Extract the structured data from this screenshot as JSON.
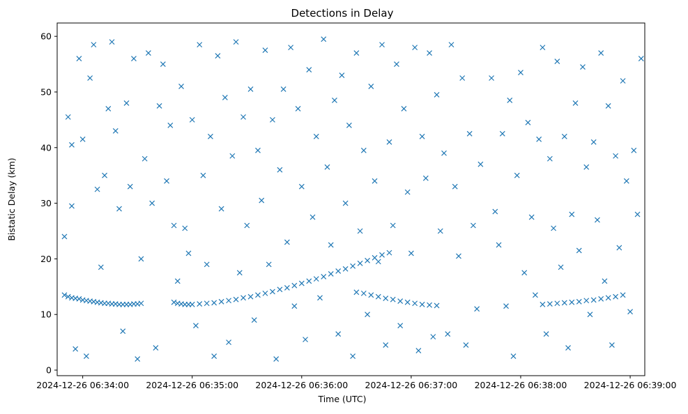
{
  "chart_data": {
    "type": "scatter",
    "title": "Detections in Delay",
    "xlabel": "Time (UTC)",
    "ylabel": "Bistatic Delay (km)",
    "xlim": [
      "2024-12-26 06:33:46",
      "2024-12-26 06:39:08"
    ],
    "ylim": [
      -1.0,
      62.4
    ],
    "grid": false,
    "x_ticks": [
      "2024-12-26 06:34:00",
      "2024-12-26 06:35:00",
      "2024-12-26 06:36:00",
      "2024-12-26 06:37:00",
      "2024-12-26 06:38:00",
      "2024-12-26 06:39:00"
    ],
    "y_ticks": [
      "0",
      "10",
      "20",
      "30",
      "40",
      "50",
      "60"
    ],
    "marker": "x",
    "color": "#1f77b4",
    "series": [
      {
        "name": "",
        "points": [
          [
            "2024-12-26 06:33:50",
            13.5
          ],
          [
            "2024-12-26 06:33:52",
            13.2
          ],
          [
            "2024-12-26 06:33:54",
            13.0
          ],
          [
            "2024-12-26 06:33:56",
            12.9
          ],
          [
            "2024-12-26 06:33:58",
            12.8
          ],
          [
            "2024-12-26 06:34:00",
            12.6
          ],
          [
            "2024-12-26 06:34:02",
            12.5
          ],
          [
            "2024-12-26 06:34:04",
            12.4
          ],
          [
            "2024-12-26 06:34:06",
            12.3
          ],
          [
            "2024-12-26 06:34:08",
            12.2
          ],
          [
            "2024-12-26 06:34:10",
            12.1
          ],
          [
            "2024-12-26 06:34:12",
            12.0
          ],
          [
            "2024-12-26 06:34:14",
            12.0
          ],
          [
            "2024-12-26 06:34:16",
            11.9
          ],
          [
            "2024-12-26 06:34:18",
            11.9
          ],
          [
            "2024-12-26 06:34:20",
            11.8
          ],
          [
            "2024-12-26 06:34:22",
            11.8
          ],
          [
            "2024-12-26 06:34:24",
            11.8
          ],
          [
            "2024-12-26 06:34:26",
            11.8
          ],
          [
            "2024-12-26 06:34:28",
            11.9
          ],
          [
            "2024-12-26 06:34:30",
            11.9
          ],
          [
            "2024-12-26 06:34:32",
            12.0
          ],
          [
            "2024-12-26 06:34:50",
            12.2
          ],
          [
            "2024-12-26 06:34:52",
            12.0
          ],
          [
            "2024-12-26 06:34:54",
            11.9
          ],
          [
            "2024-12-26 06:34:56",
            11.8
          ],
          [
            "2024-12-26 06:34:58",
            11.8
          ],
          [
            "2024-12-26 06:35:00",
            11.8
          ],
          [
            "2024-12-26 06:35:04",
            11.9
          ],
          [
            "2024-12-26 06:35:08",
            12.0
          ],
          [
            "2024-12-26 06:35:12",
            12.1
          ],
          [
            "2024-12-26 06:35:16",
            12.3
          ],
          [
            "2024-12-26 06:35:20",
            12.5
          ],
          [
            "2024-12-26 06:35:24",
            12.7
          ],
          [
            "2024-12-26 06:35:28",
            13.0
          ],
          [
            "2024-12-26 06:35:32",
            13.2
          ],
          [
            "2024-12-26 06:35:36",
            13.5
          ],
          [
            "2024-12-26 06:35:40",
            13.8
          ],
          [
            "2024-12-26 06:35:44",
            14.1
          ],
          [
            "2024-12-26 06:35:48",
            14.5
          ],
          [
            "2024-12-26 06:35:52",
            14.8
          ],
          [
            "2024-12-26 06:35:56",
            15.2
          ],
          [
            "2024-12-26 06:36:00",
            15.6
          ],
          [
            "2024-12-26 06:36:04",
            16.0
          ],
          [
            "2024-12-26 06:36:08",
            16.4
          ],
          [
            "2024-12-26 06:36:12",
            16.8
          ],
          [
            "2024-12-26 06:36:16",
            17.3
          ],
          [
            "2024-12-26 06:36:20",
            17.8
          ],
          [
            "2024-12-26 06:36:24",
            18.2
          ],
          [
            "2024-12-26 06:36:28",
            18.7
          ],
          [
            "2024-12-26 06:36:32",
            19.2
          ],
          [
            "2024-12-26 06:36:36",
            19.7
          ],
          [
            "2024-12-26 06:36:40",
            20.2
          ],
          [
            "2024-12-26 06:36:44",
            20.7
          ],
          [
            "2024-12-26 06:36:48",
            21.1
          ],
          [
            "2024-12-26 06:36:30",
            14.0
          ],
          [
            "2024-12-26 06:36:34",
            13.8
          ],
          [
            "2024-12-26 06:36:38",
            13.5
          ],
          [
            "2024-12-26 06:36:42",
            13.2
          ],
          [
            "2024-12-26 06:36:46",
            12.9
          ],
          [
            "2024-12-26 06:36:50",
            12.7
          ],
          [
            "2024-12-26 06:36:54",
            12.4
          ],
          [
            "2024-12-26 06:36:58",
            12.2
          ],
          [
            "2024-12-26 06:37:02",
            12.0
          ],
          [
            "2024-12-26 06:37:06",
            11.8
          ],
          [
            "2024-12-26 06:37:10",
            11.7
          ],
          [
            "2024-12-26 06:37:14",
            11.6
          ],
          [
            "2024-12-26 06:38:12",
            11.8
          ],
          [
            "2024-12-26 06:38:16",
            11.9
          ],
          [
            "2024-12-26 06:38:20",
            12.0
          ],
          [
            "2024-12-26 06:38:24",
            12.1
          ],
          [
            "2024-12-26 06:38:28",
            12.2
          ],
          [
            "2024-12-26 06:38:32",
            12.3
          ],
          [
            "2024-12-26 06:38:36",
            12.5
          ],
          [
            "2024-12-26 06:38:40",
            12.6
          ],
          [
            "2024-12-26 06:38:44",
            12.8
          ],
          [
            "2024-12-26 06:38:48",
            13.0
          ],
          [
            "2024-12-26 06:38:52",
            13.2
          ],
          [
            "2024-12-26 06:38:56",
            13.5
          ],
          [
            "2024-12-26 06:33:50",
            24.0
          ],
          [
            "2024-12-26 06:33:52",
            45.5
          ],
          [
            "2024-12-26 06:33:54",
            40.5
          ],
          [
            "2024-12-26 06:33:54",
            29.5
          ],
          [
            "2024-12-26 06:33:56",
            3.8
          ],
          [
            "2024-12-26 06:33:58",
            56.0
          ],
          [
            "2024-12-26 06:34:00",
            41.5
          ],
          [
            "2024-12-26 06:34:02",
            2.5
          ],
          [
            "2024-12-26 06:34:04",
            52.5
          ],
          [
            "2024-12-26 06:34:06",
            58.5
          ],
          [
            "2024-12-26 06:34:08",
            32.5
          ],
          [
            "2024-12-26 06:34:10",
            18.5
          ],
          [
            "2024-12-26 06:34:12",
            35.0
          ],
          [
            "2024-12-26 06:34:14",
            47.0
          ],
          [
            "2024-12-26 06:34:16",
            59.0
          ],
          [
            "2024-12-26 06:34:18",
            43.0
          ],
          [
            "2024-12-26 06:34:20",
            29.0
          ],
          [
            "2024-12-26 06:34:22",
            7.0
          ],
          [
            "2024-12-26 06:34:24",
            48.0
          ],
          [
            "2024-12-26 06:34:26",
            33.0
          ],
          [
            "2024-12-26 06:34:28",
            56.0
          ],
          [
            "2024-12-26 06:34:30",
            2.0
          ],
          [
            "2024-12-26 06:34:32",
            20.0
          ],
          [
            "2024-12-26 06:34:34",
            38.0
          ],
          [
            "2024-12-26 06:34:36",
            57.0
          ],
          [
            "2024-12-26 06:34:38",
            30.0
          ],
          [
            "2024-12-26 06:34:40",
            4.0
          ],
          [
            "2024-12-26 06:34:42",
            47.5
          ],
          [
            "2024-12-26 06:34:44",
            55.0
          ],
          [
            "2024-12-26 06:34:46",
            34.0
          ],
          [
            "2024-12-26 06:34:48",
            44.0
          ],
          [
            "2024-12-26 06:34:50",
            26.0
          ],
          [
            "2024-12-26 06:34:52",
            16.0
          ],
          [
            "2024-12-26 06:34:54",
            51.0
          ],
          [
            "2024-12-26 06:34:56",
            25.5
          ],
          [
            "2024-12-26 06:34:58",
            21.0
          ],
          [
            "2024-12-26 06:35:00",
            45.0
          ],
          [
            "2024-12-26 06:35:02",
            8.0
          ],
          [
            "2024-12-26 06:35:04",
            58.5
          ],
          [
            "2024-12-26 06:35:06",
            35.0
          ],
          [
            "2024-12-26 06:35:08",
            19.0
          ],
          [
            "2024-12-26 06:35:10",
            42.0
          ],
          [
            "2024-12-26 06:35:12",
            2.5
          ],
          [
            "2024-12-26 06:35:14",
            56.5
          ],
          [
            "2024-12-26 06:35:16",
            29.0
          ],
          [
            "2024-12-26 06:35:18",
            49.0
          ],
          [
            "2024-12-26 06:35:20",
            5.0
          ],
          [
            "2024-12-26 06:35:22",
            38.5
          ],
          [
            "2024-12-26 06:35:24",
            59.0
          ],
          [
            "2024-12-26 06:35:26",
            17.5
          ],
          [
            "2024-12-26 06:35:28",
            45.5
          ],
          [
            "2024-12-26 06:35:30",
            26.0
          ],
          [
            "2024-12-26 06:35:32",
            50.5
          ],
          [
            "2024-12-26 06:35:34",
            9.0
          ],
          [
            "2024-12-26 06:35:36",
            39.5
          ],
          [
            "2024-12-26 06:35:38",
            30.5
          ],
          [
            "2024-12-26 06:35:40",
            57.5
          ],
          [
            "2024-12-26 06:35:42",
            19.0
          ],
          [
            "2024-12-26 06:35:44",
            45.0
          ],
          [
            "2024-12-26 06:35:46",
            2.0
          ],
          [
            "2024-12-26 06:35:48",
            36.0
          ],
          [
            "2024-12-26 06:35:50",
            50.5
          ],
          [
            "2024-12-26 06:35:52",
            23.0
          ],
          [
            "2024-12-26 06:35:54",
            58.0
          ],
          [
            "2024-12-26 06:35:56",
            11.5
          ],
          [
            "2024-12-26 06:35:58",
            47.0
          ],
          [
            "2024-12-26 06:36:00",
            33.0
          ],
          [
            "2024-12-26 06:36:02",
            5.5
          ],
          [
            "2024-12-26 06:36:04",
            54.0
          ],
          [
            "2024-12-26 06:36:06",
            27.5
          ],
          [
            "2024-12-26 06:36:08",
            42.0
          ],
          [
            "2024-12-26 06:36:10",
            13.0
          ],
          [
            "2024-12-26 06:36:12",
            59.5
          ],
          [
            "2024-12-26 06:36:14",
            36.5
          ],
          [
            "2024-12-26 06:36:16",
            22.5
          ],
          [
            "2024-12-26 06:36:18",
            48.5
          ],
          [
            "2024-12-26 06:36:20",
            6.5
          ],
          [
            "2024-12-26 06:36:22",
            53.0
          ],
          [
            "2024-12-26 06:36:24",
            30.0
          ],
          [
            "2024-12-26 06:36:26",
            44.0
          ],
          [
            "2024-12-26 06:36:28",
            2.5
          ],
          [
            "2024-12-26 06:36:30",
            57.0
          ],
          [
            "2024-12-26 06:36:32",
            25.0
          ],
          [
            "2024-12-26 06:36:34",
            39.5
          ],
          [
            "2024-12-26 06:36:36",
            10.0
          ],
          [
            "2024-12-26 06:36:38",
            51.0
          ],
          [
            "2024-12-26 06:36:40",
            34.0
          ],
          [
            "2024-12-26 06:36:42",
            19.5
          ],
          [
            "2024-12-26 06:36:44",
            58.5
          ],
          [
            "2024-12-26 06:36:46",
            4.5
          ],
          [
            "2024-12-26 06:36:48",
            41.0
          ],
          [
            "2024-12-26 06:36:50",
            26.0
          ],
          [
            "2024-12-26 06:36:52",
            55.0
          ],
          [
            "2024-12-26 06:36:54",
            8.0
          ],
          [
            "2024-12-26 06:36:56",
            47.0
          ],
          [
            "2024-12-26 06:36:58",
            32.0
          ],
          [
            "2024-12-26 06:37:00",
            21.0
          ],
          [
            "2024-12-26 06:37:02",
            58.0
          ],
          [
            "2024-12-26 06:37:04",
            3.5
          ],
          [
            "2024-12-26 06:37:06",
            42.0
          ],
          [
            "2024-12-26 06:37:08",
            34.5
          ],
          [
            "2024-12-26 06:37:10",
            57.0
          ],
          [
            "2024-12-26 06:37:12",
            6.0
          ],
          [
            "2024-12-26 06:37:14",
            49.5
          ],
          [
            "2024-12-26 06:37:16",
            25.0
          ],
          [
            "2024-12-26 06:37:18",
            39.0
          ],
          [
            "2024-12-26 06:37:20",
            6.5
          ],
          [
            "2024-12-26 06:37:22",
            58.5
          ],
          [
            "2024-12-26 06:37:24",
            33.0
          ],
          [
            "2024-12-26 06:37:26",
            20.5
          ],
          [
            "2024-12-26 06:37:28",
            52.5
          ],
          [
            "2024-12-26 06:37:30",
            4.5
          ],
          [
            "2024-12-26 06:37:32",
            42.5
          ],
          [
            "2024-12-26 06:37:34",
            26.0
          ],
          [
            "2024-12-26 06:37:36",
            11.0
          ],
          [
            "2024-12-26 06:37:38",
            37.0
          ],
          [
            "2024-12-26 06:37:44",
            52.5
          ],
          [
            "2024-12-26 06:37:46",
            28.5
          ],
          [
            "2024-12-26 06:37:48",
            22.5
          ],
          [
            "2024-12-26 06:37:50",
            42.5
          ],
          [
            "2024-12-26 06:37:52",
            11.5
          ],
          [
            "2024-12-26 06:37:54",
            48.5
          ],
          [
            "2024-12-26 06:37:56",
            2.5
          ],
          [
            "2024-12-26 06:37:58",
            35.0
          ],
          [
            "2024-12-26 06:38:00",
            53.5
          ],
          [
            "2024-12-26 06:38:02",
            17.5
          ],
          [
            "2024-12-26 06:38:04",
            44.5
          ],
          [
            "2024-12-26 06:38:06",
            27.5
          ],
          [
            "2024-12-26 06:38:08",
            13.5
          ],
          [
            "2024-12-26 06:38:10",
            41.5
          ],
          [
            "2024-12-26 06:38:12",
            58.0
          ],
          [
            "2024-12-26 06:38:14",
            6.5
          ],
          [
            "2024-12-26 06:38:16",
            38.0
          ],
          [
            "2024-12-26 06:38:18",
            25.5
          ],
          [
            "2024-12-26 06:38:20",
            55.5
          ],
          [
            "2024-12-26 06:38:22",
            18.5
          ],
          [
            "2024-12-26 06:38:24",
            42.0
          ],
          [
            "2024-12-26 06:38:26",
            4.0
          ],
          [
            "2024-12-26 06:38:28",
            28.0
          ],
          [
            "2024-12-26 06:38:30",
            48.0
          ],
          [
            "2024-12-26 06:38:32",
            21.5
          ],
          [
            "2024-12-26 06:38:34",
            54.5
          ],
          [
            "2024-12-26 06:38:36",
            36.5
          ],
          [
            "2024-12-26 06:38:38",
            10.0
          ],
          [
            "2024-12-26 06:38:40",
            41.0
          ],
          [
            "2024-12-26 06:38:42",
            27.0
          ],
          [
            "2024-12-26 06:38:44",
            57.0
          ],
          [
            "2024-12-26 06:38:46",
            16.0
          ],
          [
            "2024-12-26 06:38:48",
            47.5
          ],
          [
            "2024-12-26 06:38:50",
            4.5
          ],
          [
            "2024-12-26 06:38:52",
            38.5
          ],
          [
            "2024-12-26 06:38:54",
            22.0
          ],
          [
            "2024-12-26 06:38:56",
            52.0
          ],
          [
            "2024-12-26 06:38:58",
            34.0
          ],
          [
            "2024-12-26 06:39:00",
            10.5
          ],
          [
            "2024-12-26 06:39:02",
            39.5
          ],
          [
            "2024-12-26 06:39:04",
            28.0
          ],
          [
            "2024-12-26 06:39:06",
            56.0
          ]
        ]
      }
    ]
  }
}
